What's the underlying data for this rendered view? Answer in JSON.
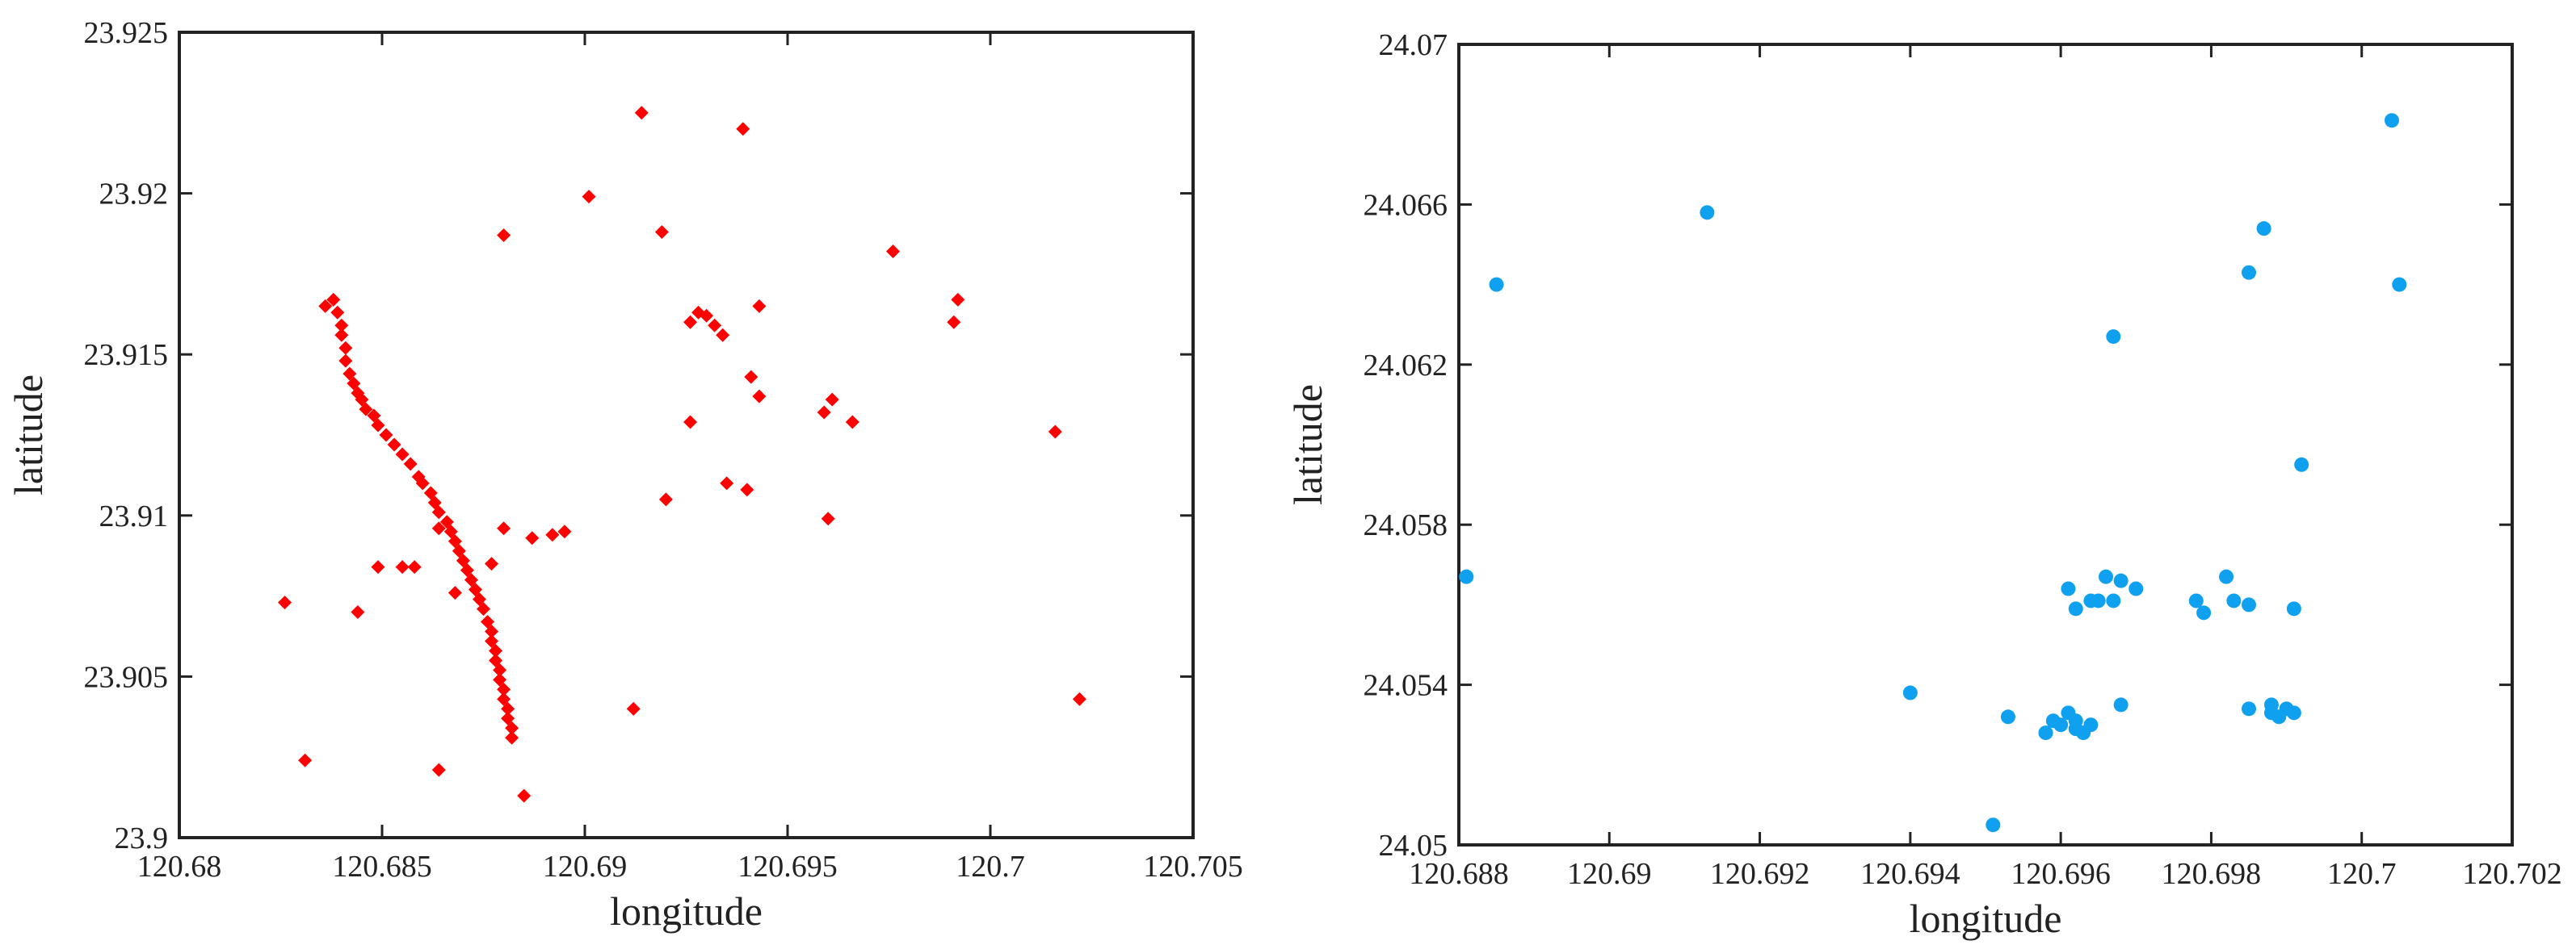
{
  "chart_data": [
    {
      "type": "scatter",
      "xlabel": "longitude",
      "ylabel": "latitude",
      "xlim": [
        120.68,
        120.705
      ],
      "ylim": [
        23.9,
        23.925
      ],
      "xticks": [
        "120.68",
        "120.685",
        "120.69",
        "120.695",
        "120.7",
        "120.705"
      ],
      "yticks": [
        "23.9",
        "23.905",
        "23.91",
        "23.915",
        "23.92",
        "23.925"
      ],
      "grid": false,
      "marker": "diamond",
      "color": "#ff0000",
      "points": [
        [
          120.6836,
          23.9165
        ],
        [
          120.6838,
          23.9167
        ],
        [
          120.6839,
          23.9163
        ],
        [
          120.684,
          23.9159
        ],
        [
          120.684,
          23.9156
        ],
        [
          120.6841,
          23.9152
        ],
        [
          120.6841,
          23.9148
        ],
        [
          120.6842,
          23.9144
        ],
        [
          120.6843,
          23.9141
        ],
        [
          120.6844,
          23.9138
        ],
        [
          120.6845,
          23.9136
        ],
        [
          120.6846,
          23.9133
        ],
        [
          120.6848,
          23.9131
        ],
        [
          120.6849,
          23.9128
        ],
        [
          120.6851,
          23.9125
        ],
        [
          120.6853,
          23.9122
        ],
        [
          120.6855,
          23.9119
        ],
        [
          120.6857,
          23.9116
        ],
        [
          120.6859,
          23.9112
        ],
        [
          120.686,
          23.911
        ],
        [
          120.6862,
          23.9107
        ],
        [
          120.6863,
          23.9104
        ],
        [
          120.6864,
          23.9101
        ],
        [
          120.6866,
          23.9098
        ],
        [
          120.6867,
          23.9095
        ],
        [
          120.6868,
          23.9092
        ],
        [
          120.6869,
          23.9089
        ],
        [
          120.687,
          23.9086
        ],
        [
          120.6871,
          23.9083
        ],
        [
          120.6872,
          23.908
        ],
        [
          120.6873,
          23.9077
        ],
        [
          120.6874,
          23.9074
        ],
        [
          120.6875,
          23.9071
        ],
        [
          120.6876,
          23.9067
        ],
        [
          120.6877,
          23.9064
        ],
        [
          120.6877,
          23.9061
        ],
        [
          120.6878,
          23.9058
        ],
        [
          120.6878,
          23.9055
        ],
        [
          120.6879,
          23.9052
        ],
        [
          120.6879,
          23.9049
        ],
        [
          120.688,
          23.9046
        ],
        [
          120.688,
          23.9043
        ],
        [
          120.6881,
          23.904
        ],
        [
          120.6881,
          23.9037
        ],
        [
          120.6882,
          23.9034
        ],
        [
          120.6882,
          23.9031
        ],
        [
          120.6826,
          23.9073
        ],
        [
          120.6844,
          23.907
        ],
        [
          120.6849,
          23.9084
        ],
        [
          120.6855,
          23.9084
        ],
        [
          120.6858,
          23.9084
        ],
        [
          120.6864,
          23.9096
        ],
        [
          120.6868,
          23.9076
        ],
        [
          120.6877,
          23.9085
        ],
        [
          120.688,
          23.9096
        ],
        [
          120.6887,
          23.9093
        ],
        [
          120.6892,
          23.9094
        ],
        [
          120.6895,
          23.9095
        ],
        [
          120.6831,
          23.9024
        ],
        [
          120.6864,
          23.9021
        ],
        [
          120.6885,
          23.9013
        ],
        [
          120.6912,
          23.904
        ],
        [
          120.688,
          23.9187
        ],
        [
          120.6901,
          23.9199
        ],
        [
          120.6914,
          23.9225
        ],
        [
          120.6919,
          23.9188
        ],
        [
          120.6939,
          23.922
        ],
        [
          120.692,
          23.9105
        ],
        [
          120.6926,
          23.916
        ],
        [
          120.6928,
          23.9163
        ],
        [
          120.693,
          23.9162
        ],
        [
          120.6932,
          23.9159
        ],
        [
          120.6934,
          23.9156
        ],
        [
          120.6926,
          23.9129
        ],
        [
          120.6935,
          23.911
        ],
        [
          120.694,
          23.9108
        ],
        [
          120.6941,
          23.9143
        ],
        [
          120.6943,
          23.9137
        ],
        [
          120.6943,
          23.9165
        ],
        [
          120.6959,
          23.9132
        ],
        [
          120.6961,
          23.9136
        ],
        [
          120.6966,
          23.9129
        ],
        [
          120.696,
          23.9099
        ],
        [
          120.6976,
          23.9182
        ],
        [
          120.6991,
          23.916
        ],
        [
          120.6992,
          23.9167
        ],
        [
          120.7016,
          23.9126
        ],
        [
          120.7022,
          23.9043
        ]
      ]
    },
    {
      "type": "scatter",
      "xlabel": "longitude",
      "ylabel": "latitude",
      "xlim": [
        120.688,
        120.702
      ],
      "ylim": [
        24.05,
        24.07
      ],
      "xticks": [
        "120.688",
        "120.69",
        "120.692",
        "120.694",
        "120.696",
        "120.698",
        "120.7",
        "120.702"
      ],
      "yticks": [
        "24.05",
        "24.054",
        "24.058",
        "24.062",
        "24.066",
        "24.07"
      ],
      "grid": false,
      "marker": "circle",
      "color": "#10a0f0",
      "points": [
        [
          120.6881,
          24.0567
        ],
        [
          120.6885,
          24.064
        ],
        [
          120.6913,
          24.0658
        ],
        [
          120.694,
          24.0538
        ],
        [
          120.6951,
          24.0505
        ],
        [
          120.6953,
          24.0532
        ],
        [
          120.6958,
          24.0528
        ],
        [
          120.6959,
          24.0531
        ],
        [
          120.696,
          24.053
        ],
        [
          120.6961,
          24.0533
        ],
        [
          120.6962,
          24.0529
        ],
        [
          120.6962,
          24.0531
        ],
        [
          120.6963,
          24.0528
        ],
        [
          120.6964,
          24.053
        ],
        [
          120.6961,
          24.0564
        ],
        [
          120.6962,
          24.0559
        ],
        [
          120.6964,
          24.0561
        ],
        [
          120.6965,
          24.0561
        ],
        [
          120.6966,
          24.0567
        ],
        [
          120.6967,
          24.0561
        ],
        [
          120.6967,
          24.0627
        ],
        [
          120.6968,
          24.0566
        ],
        [
          120.6968,
          24.0535
        ],
        [
          120.697,
          24.0564
        ],
        [
          120.6978,
          24.0561
        ],
        [
          120.6979,
          24.0558
        ],
        [
          120.6982,
          24.0567
        ],
        [
          120.6983,
          24.0561
        ],
        [
          120.6985,
          24.056
        ],
        [
          120.6985,
          24.0534
        ],
        [
          120.6985,
          24.0643
        ],
        [
          120.6987,
          24.0654
        ],
        [
          120.6988,
          24.0533
        ],
        [
          120.6988,
          24.0535
        ],
        [
          120.6989,
          24.0532
        ],
        [
          120.699,
          24.0534
        ],
        [
          120.6991,
          24.0533
        ],
        [
          120.6991,
          24.0559
        ],
        [
          120.6992,
          24.0595
        ],
        [
          120.7004,
          24.0681
        ],
        [
          120.7005,
          24.064
        ]
      ]
    }
  ]
}
